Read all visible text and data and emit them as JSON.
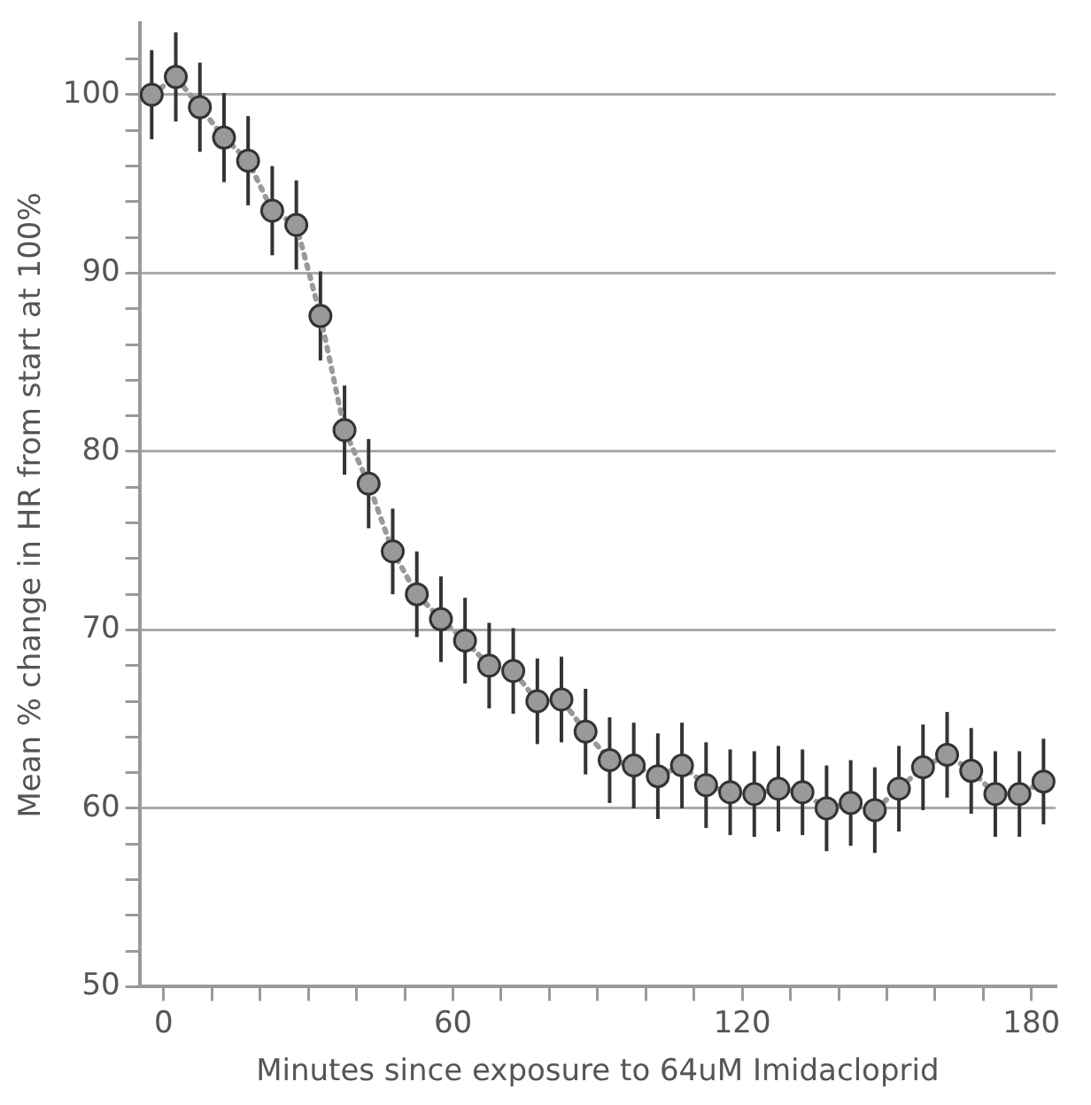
{
  "chart_data": {
    "type": "line",
    "xlabel": "Minutes since exposure to 64uM Imidacloprid",
    "ylabel": "Mean % change in HR from start at 100%",
    "x": [
      -2.5,
      2.5,
      7.5,
      12.5,
      17.5,
      22.5,
      27.5,
      32.5,
      37.5,
      42.5,
      47.5,
      52.5,
      57.5,
      62.5,
      67.5,
      72.5,
      77.5,
      82.5,
      87.5,
      92.5,
      97.5,
      102.5,
      107.5,
      112.5,
      117.5,
      122.5,
      127.5,
      132.5,
      137.5,
      142.5,
      147.5,
      152.5,
      157.5,
      162.5,
      167.5,
      172.5,
      177.5,
      182.5
    ],
    "series": [
      {
        "color": "#999999",
        "values": [
          100.0,
          101.0,
          99.3,
          97.6,
          96.3,
          93.5,
          92.7,
          87.6,
          81.2,
          78.2,
          74.4,
          72.0,
          70.6,
          69.4,
          68.0,
          67.7,
          66.0,
          66.1,
          64.3,
          62.7,
          62.4,
          61.8,
          62.4,
          61.3,
          60.9,
          60.8,
          61.1,
          60.9,
          60.0,
          60.3,
          59.9,
          61.1,
          62.3,
          63.0,
          62.1,
          60.8,
          60.8,
          61.5
        ],
        "errors": [
          2.5,
          2.5,
          2.5,
          2.5,
          2.5,
          2.5,
          2.5,
          2.5,
          2.5,
          2.5,
          2.4,
          2.4,
          2.4,
          2.4,
          2.4,
          2.4,
          2.4,
          2.4,
          2.4,
          2.4,
          2.4,
          2.4,
          2.4,
          2.4,
          2.4,
          2.4,
          2.4,
          2.4,
          2.4,
          2.4,
          2.4,
          2.4,
          2.4,
          2.4,
          2.4,
          2.4,
          2.4,
          2.4
        ]
      }
    ],
    "marker": "circle",
    "line_style": "dotted",
    "xlim": [
      -5,
      185
    ],
    "xticks": [
      0,
      {
        "value": 10,
        "label": null
      },
      {
        "value": 20,
        "label": null
      },
      {
        "value": 30,
        "label": null
      },
      {
        "value": 40,
        "label": null
      },
      {
        "value": 50,
        "label": null
      },
      60,
      {
        "value": 70,
        "label": null
      },
      {
        "value": 80,
        "label": null
      },
      {
        "value": 90,
        "label": null
      },
      {
        "value": 100,
        "label": null
      },
      {
        "value": 110,
        "label": null
      },
      120,
      {
        "value": 130,
        "label": null
      },
      {
        "value": 140,
        "label": null
      },
      {
        "value": 150,
        "label": null
      },
      {
        "value": 160,
        "label": null
      },
      {
        "value": 170,
        "label": null
      },
      180
    ],
    "ylim": [
      50,
      104
    ],
    "yticks": [
      50,
      {
        "value": 52,
        "label": null
      },
      {
        "value": 54,
        "label": null
      },
      {
        "value": 56,
        "label": null
      },
      {
        "value": 58,
        "label": null
      },
      60,
      {
        "value": 62,
        "label": null
      },
      {
        "value": 64,
        "label": null
      },
      {
        "value": 66,
        "label": null
      },
      {
        "value": 68,
        "label": null
      },
      70,
      {
        "value": 72,
        "label": null
      },
      {
        "value": 74,
        "label": null
      },
      {
        "value": 76,
        "label": null
      },
      {
        "value": 78,
        "label": null
      },
      80,
      {
        "value": 82,
        "label": null
      },
      {
        "value": 84,
        "label": null
      },
      {
        "value": 86,
        "label": null
      },
      {
        "value": 88,
        "label": null
      },
      90,
      {
        "value": 92,
        "label": null
      },
      {
        "value": 94,
        "label": null
      },
      {
        "value": 96,
        "label": null
      },
      {
        "value": 98,
        "label": null
      },
      100,
      {
        "value": 102,
        "label": null
      }
    ],
    "grid": "y",
    "legend": false
  }
}
